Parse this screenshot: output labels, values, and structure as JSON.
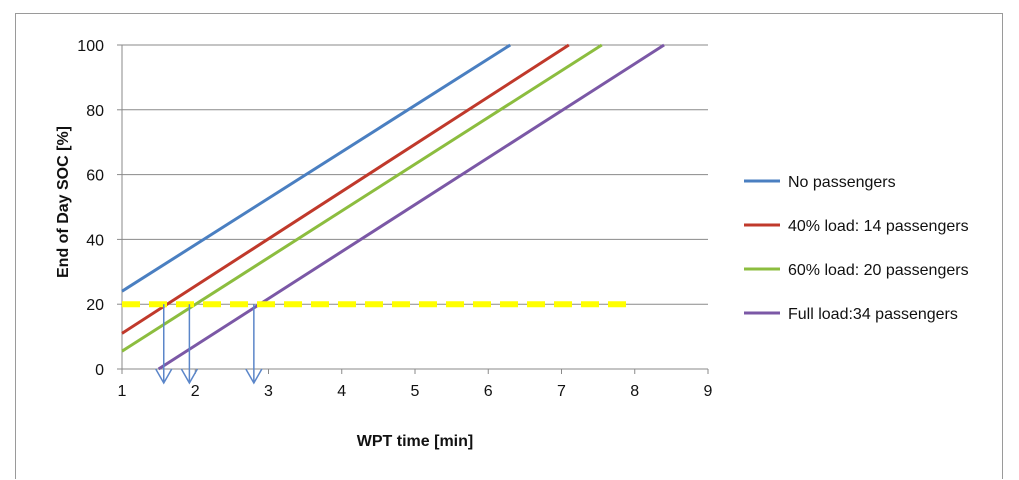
{
  "chart_data": {
    "type": "line",
    "title": "",
    "xlabel": "WPT time [min]",
    "ylabel": "End of Day SOC [%]",
    "xlim": [
      1,
      9
    ],
    "ylim": [
      0,
      100
    ],
    "xticks": [
      1,
      2,
      3,
      4,
      5,
      6,
      7,
      8,
      9
    ],
    "yticks": [
      0,
      20,
      40,
      60,
      80,
      100
    ],
    "grid": "horizontal",
    "legend_position": "right",
    "series": [
      {
        "name": "No passengers",
        "color": "#4a7fc1",
        "x": [
          1,
          6.3
        ],
        "y": [
          24,
          100
        ]
      },
      {
        "name": "40% load: 14 passengers",
        "color": "#c0392b",
        "x": [
          1,
          7.1
        ],
        "y": [
          11,
          100
        ]
      },
      {
        "name": "60% load: 20 passengers",
        "color": "#8cbd3f",
        "x": [
          1,
          7.55
        ],
        "y": [
          5.5,
          100
        ]
      },
      {
        "name": "Full load:34 passengers",
        "color": "#7b58a6",
        "x": [
          1.5,
          8.4
        ],
        "y": [
          0,
          100
        ]
      }
    ],
    "threshold": {
      "y": 20,
      "x": [
        1,
        8
      ],
      "color": "#ffff00"
    },
    "arrows": [
      {
        "x": 1.57,
        "y_from": 20,
        "y_to": 0
      },
      {
        "x": 1.92,
        "y_from": 20,
        "y_to": 0
      },
      {
        "x": 2.8,
        "y_from": 20,
        "y_to": 0
      }
    ],
    "arrow_color": "#5b86c9"
  }
}
